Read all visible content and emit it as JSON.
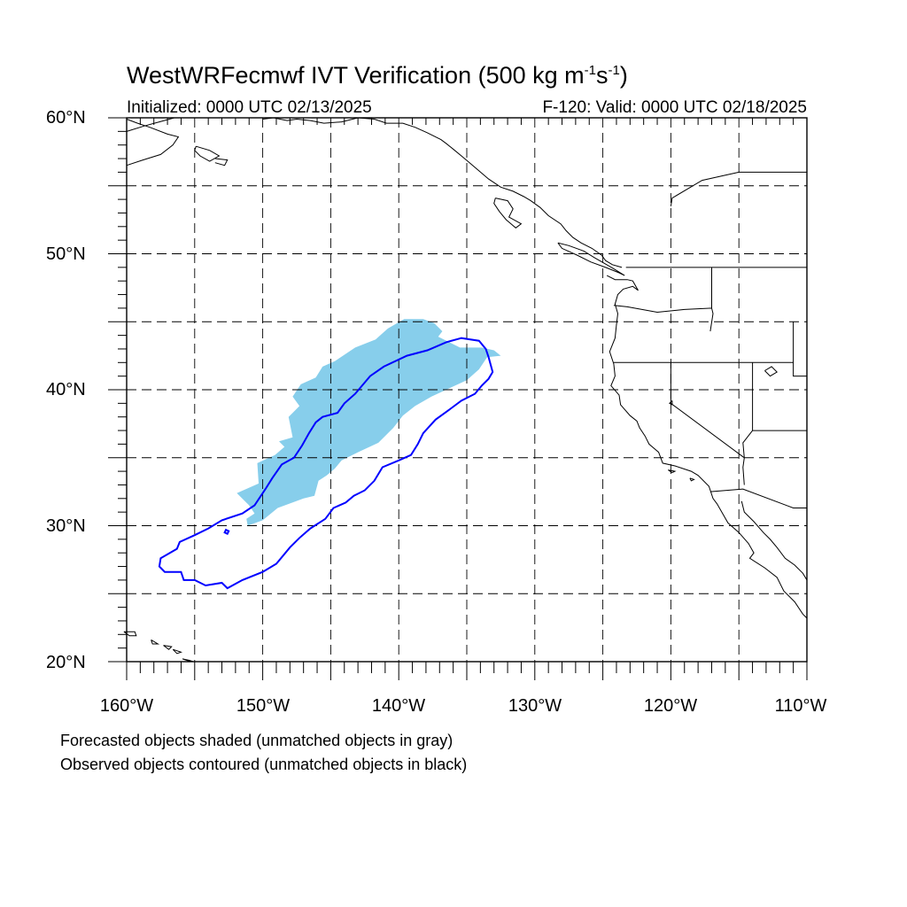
{
  "title": {
    "prefix": "WestWRFecmwf IVT Verification (500 kg m",
    "sup1": "-1",
    "mid": "s",
    "sup2": "-1",
    "suffix": ")"
  },
  "subtitle_left": "Initialized: 0000 UTC 02/13/2025",
  "subtitle_right": "F-120: Valid: 0000 UTC 02/18/2025",
  "latitude_labels": [
    {
      "text": "60°N",
      "lat": 60
    },
    {
      "text": "50°N",
      "lat": 50
    },
    {
      "text": "40°N",
      "lat": 40
    },
    {
      "text": "30°N",
      "lat": 30
    },
    {
      "text": "20°N",
      "lat": 20
    }
  ],
  "longitude_labels": [
    {
      "text": "160°W",
      "lon": -160
    },
    {
      "text": "150°W",
      "lon": -150
    },
    {
      "text": "140°W",
      "lon": -140
    },
    {
      "text": "130°W",
      "lon": -130
    },
    {
      "text": "120°W",
      "lon": -120
    },
    {
      "text": "110°W",
      "lon": -110
    }
  ],
  "map_extent": {
    "lon_min": -160,
    "lon_max": -110,
    "lat_min": 20,
    "lat_max": 60
  },
  "grid_spacing_deg": 5,
  "colors": {
    "forecast_fill": "#87ceeb",
    "observed_contour": "#0000ff",
    "coastline": "#000000",
    "grid": "#000000"
  },
  "forecast_object": [
    [
      -150.6,
      30.9
    ],
    [
      -151.2,
      30.5
    ],
    [
      -151.1,
      30.0
    ],
    [
      -150.0,
      30.4
    ],
    [
      -148.9,
      31.3
    ],
    [
      -147.0,
      32.0
    ],
    [
      -146.2,
      32.2
    ],
    [
      -145.9,
      33.3
    ],
    [
      -145.3,
      33.7
    ],
    [
      -144.7,
      34.2
    ],
    [
      -144.2,
      34.8
    ],
    [
      -143.0,
      35.4
    ],
    [
      -141.5,
      36.1
    ],
    [
      -140.4,
      37.2
    ],
    [
      -139.7,
      38.1
    ],
    [
      -138.8,
      38.8
    ],
    [
      -137.6,
      39.5
    ],
    [
      -136.3,
      40.1
    ],
    [
      -135.0,
      40.7
    ],
    [
      -134.1,
      41.5
    ],
    [
      -133.5,
      42.4
    ],
    [
      -132.5,
      42.5
    ],
    [
      -133.0,
      42.9
    ],
    [
      -133.9,
      43.1
    ],
    [
      -135.5,
      43.1
    ],
    [
      -137.1,
      43.9
    ],
    [
      -136.8,
      44.3
    ],
    [
      -137.4,
      44.9
    ],
    [
      -138.2,
      45.2
    ],
    [
      -139.6,
      45.2
    ],
    [
      -140.8,
      44.5
    ],
    [
      -141.7,
      43.7
    ],
    [
      -143.2,
      43.1
    ],
    [
      -144.7,
      42.1
    ],
    [
      -145.6,
      41.7
    ],
    [
      -146.1,
      40.9
    ],
    [
      -147.2,
      40.4
    ],
    [
      -147.8,
      39.5
    ],
    [
      -147.3,
      38.8
    ],
    [
      -148.1,
      38.0
    ],
    [
      -147.8,
      36.5
    ],
    [
      -148.8,
      36.2
    ],
    [
      -148.4,
      35.8
    ],
    [
      -149.1,
      35.2
    ],
    [
      -150.4,
      34.6
    ],
    [
      -150.3,
      33.1
    ],
    [
      -151.9,
      32.4
    ],
    [
      -151.0,
      31.5
    ]
  ],
  "observed_object": [
    [
      -156.3,
      28.3
    ],
    [
      -157.5,
      27.6
    ],
    [
      -157.6,
      27.0
    ],
    [
      -157.2,
      26.6
    ],
    [
      -156.0,
      26.6
    ],
    [
      -155.8,
      26.0
    ],
    [
      -155.0,
      26.0
    ],
    [
      -154.2,
      25.6
    ],
    [
      -153.0,
      25.8
    ],
    [
      -152.6,
      25.4
    ],
    [
      -151.5,
      26.0
    ],
    [
      -150.0,
      26.6
    ],
    [
      -149.0,
      27.2
    ],
    [
      -148.0,
      28.4
    ],
    [
      -147.3,
      29.1
    ],
    [
      -146.5,
      29.8
    ],
    [
      -145.4,
      30.5
    ],
    [
      -144.8,
      31.3
    ],
    [
      -143.9,
      31.7
    ],
    [
      -143.3,
      32.2
    ],
    [
      -142.5,
      32.6
    ],
    [
      -141.8,
      33.3
    ],
    [
      -141.2,
      34.3
    ],
    [
      -140.0,
      34.8
    ],
    [
      -139.1,
      35.2
    ],
    [
      -138.6,
      36.0
    ],
    [
      -138.2,
      36.8
    ],
    [
      -137.3,
      37.8
    ],
    [
      -136.2,
      38.6
    ],
    [
      -135.4,
      39.2
    ],
    [
      -134.4,
      39.7
    ],
    [
      -133.9,
      40.3
    ],
    [
      -133.4,
      40.8
    ],
    [
      -133.1,
      41.3
    ],
    [
      -133.4,
      42.4
    ],
    [
      -133.6,
      43.0
    ],
    [
      -134.1,
      43.6
    ],
    [
      -135.4,
      43.8
    ],
    [
      -136.5,
      43.5
    ],
    [
      -137.9,
      42.9
    ],
    [
      -139.4,
      42.5
    ],
    [
      -141.1,
      41.7
    ],
    [
      -142.1,
      41.0
    ],
    [
      -143.2,
      39.7
    ],
    [
      -144.0,
      39.0
    ],
    [
      -144.5,
      38.3
    ],
    [
      -145.6,
      38.0
    ],
    [
      -146.1,
      37.6
    ],
    [
      -146.6,
      36.8
    ],
    [
      -147.1,
      35.9
    ],
    [
      -147.7,
      35.0
    ],
    [
      -148.6,
      34.5
    ],
    [
      -149.3,
      33.5
    ],
    [
      -149.8,
      32.7
    ],
    [
      -150.6,
      31.5
    ],
    [
      -151.5,
      30.9
    ],
    [
      -153.0,
      30.4
    ],
    [
      -154.0,
      29.8
    ],
    [
      -155.0,
      29.3
    ],
    [
      -156.1,
      28.8
    ]
  ],
  "observed_islet": [
    [
      -152.7,
      29.7
    ],
    [
      -152.5,
      29.6
    ],
    [
      -152.6,
      29.4
    ],
    [
      -152.8,
      29.5
    ]
  ]
}
